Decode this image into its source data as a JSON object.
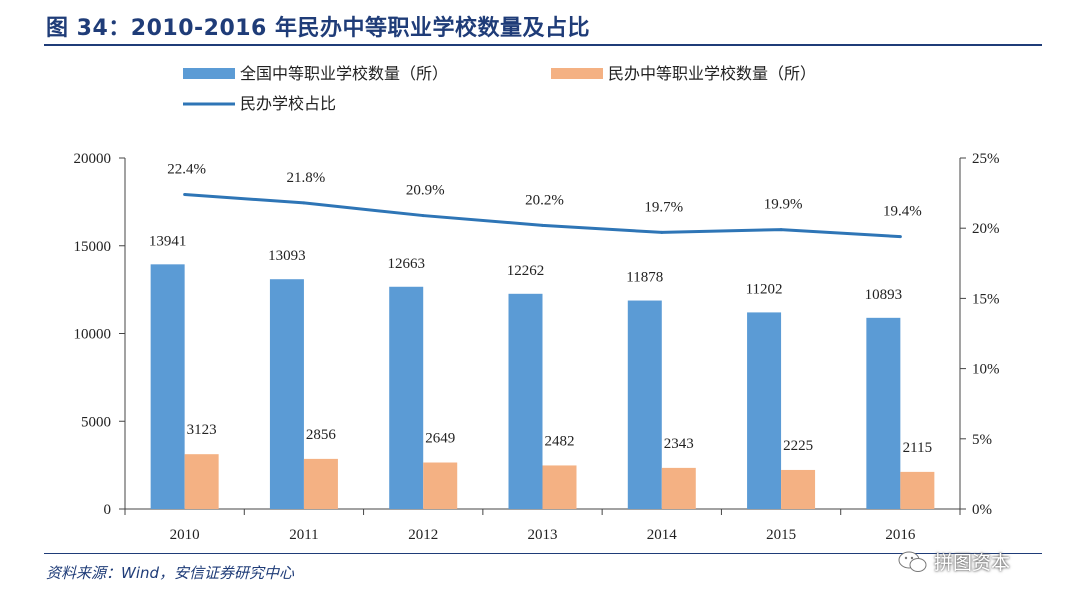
{
  "title": "图 34：2010-2016 年民办中等职业学校数量及占比",
  "source": "资料来源：Wind，安信证券研究中心",
  "watermark": "拼图资本",
  "colors": {
    "national": "#5b9bd5",
    "private": "#f4b183",
    "ratio": "#2e75b6",
    "title": "#1f3c78"
  },
  "chart_data": {
    "type": "bar",
    "categories": [
      "2010",
      "2011",
      "2012",
      "2013",
      "2014",
      "2015",
      "2016"
    ],
    "series": [
      {
        "name": "全国中等职业学校数量（所）",
        "kind": "bar",
        "axis": "left",
        "values": [
          13941,
          13093,
          12663,
          12262,
          11878,
          11202,
          10893
        ]
      },
      {
        "name": "民办中等职业学校数量（所）",
        "kind": "bar",
        "axis": "left",
        "values": [
          3123,
          2856,
          2649,
          2482,
          2343,
          2225,
          2115
        ]
      },
      {
        "name": "民办学校占比",
        "kind": "line",
        "axis": "right",
        "values": [
          22.4,
          21.8,
          20.9,
          20.2,
          19.7,
          19.9,
          19.4
        ],
        "labels": [
          "22.4%",
          "21.8%",
          "20.9%",
          "20.2%",
          "19.7%",
          "19.9%",
          "19.4%"
        ]
      }
    ],
    "y_left": {
      "min": 0,
      "max": 20000,
      "ticks": [
        "0",
        "5000",
        "10000",
        "15000",
        "20000"
      ]
    },
    "y_right": {
      "min": 0,
      "max": 25,
      "ticks": [
        "0%",
        "5%",
        "10%",
        "15%",
        "20%",
        "25%"
      ]
    },
    "legend_position": "top-left",
    "grid": false
  }
}
